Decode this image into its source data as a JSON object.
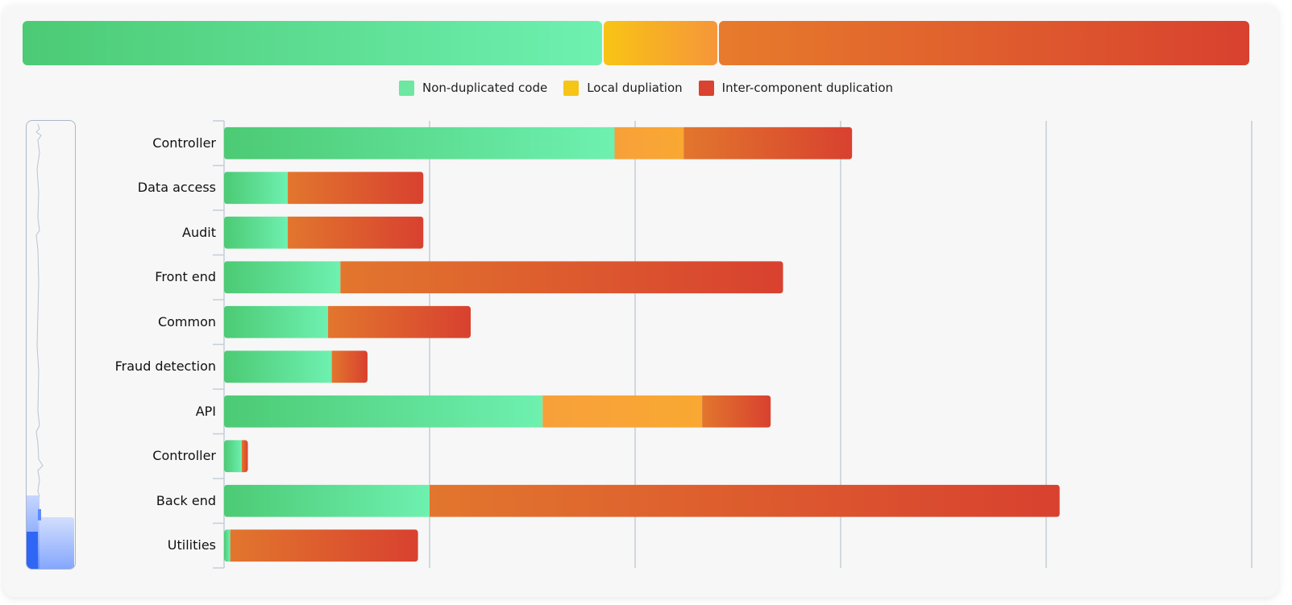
{
  "chart_data": {
    "type": "bar",
    "orientation": "horizontal",
    "stacked": true,
    "title": "",
    "xlabel": "",
    "ylabel": "",
    "xlim": [
      0,
      2500
    ],
    "grid": true,
    "legend_position": "top-center",
    "categories": [
      "Controller",
      "Data access",
      "Audit",
      "Front end",
      "Common",
      "Fraud detection",
      "API",
      "Controller",
      "Back end",
      "Utilities"
    ],
    "series": [
      {
        "name": "Non-duplicated code",
        "color": "#6ee7a0",
        "values": [
          950,
          155,
          155,
          283,
          253,
          262,
          775,
          43,
          500,
          15
        ]
      },
      {
        "name": "Local dupliation",
        "color": "#f5a83a",
        "values": [
          168,
          0,
          0,
          0,
          0,
          0,
          388,
          0,
          0,
          0
        ]
      },
      {
        "name": "Inter-component duplication",
        "color": "#d9432f",
        "values": [
          410,
          330,
          330,
          1077,
          347,
          87,
          167,
          15,
          1533,
          457
        ]
      }
    ],
    "totals_bar": {
      "values": [
        1420,
        280,
        1300
      ]
    }
  },
  "minimap": {
    "label": "overview-minimap"
  }
}
